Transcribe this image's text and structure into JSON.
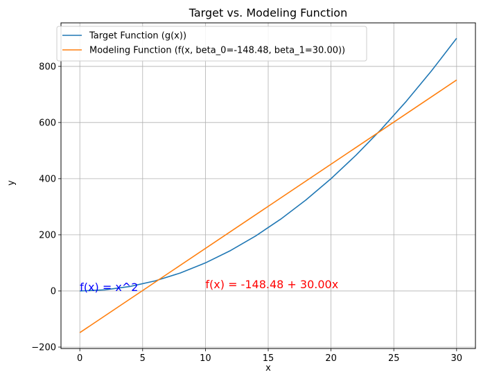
{
  "chart_data": {
    "type": "line",
    "title": "Target vs. Modeling Function",
    "xlabel": "x",
    "ylabel": "y",
    "xlim": [
      -1.5,
      31.5
    ],
    "ylim": [
      -205,
      955
    ],
    "grid": true,
    "legend_position": "top-left",
    "x_ticks": [
      0,
      5,
      10,
      15,
      20,
      25,
      30
    ],
    "x_tick_labels": [
      "0",
      "5",
      "10",
      "15",
      "20",
      "25",
      "30"
    ],
    "y_ticks": [
      -200,
      0,
      200,
      400,
      600,
      800
    ],
    "y_tick_labels": [
      "−200",
      "0",
      "200",
      "400",
      "600",
      "800"
    ],
    "series": [
      {
        "name": "Target Function (g(x))",
        "color": "#1f77b4",
        "x": [
          0,
          2,
          4,
          6,
          8,
          10,
          12,
          14,
          16,
          18,
          20,
          22,
          24,
          26,
          28,
          30
        ],
        "y": [
          0,
          4,
          16,
          36,
          64,
          100,
          144,
          196,
          256,
          324,
          400,
          484,
          576,
          676,
          784,
          900
        ]
      },
      {
        "name": "Modeling Function (f(x, beta_0=-148.48, beta_1=30.00))",
        "color": "#ff7f0e",
        "x": [
          0,
          30
        ],
        "y": [
          -148.48,
          751.52
        ]
      }
    ],
    "annotations": [
      {
        "text": "f(x) = x^2",
        "x": 0,
        "y": 0,
        "color": "#0000ff"
      },
      {
        "text": "f(x) = -148.48 + 30.00x",
        "x": 10,
        "y": 10,
        "color": "#ff0000"
      }
    ]
  }
}
